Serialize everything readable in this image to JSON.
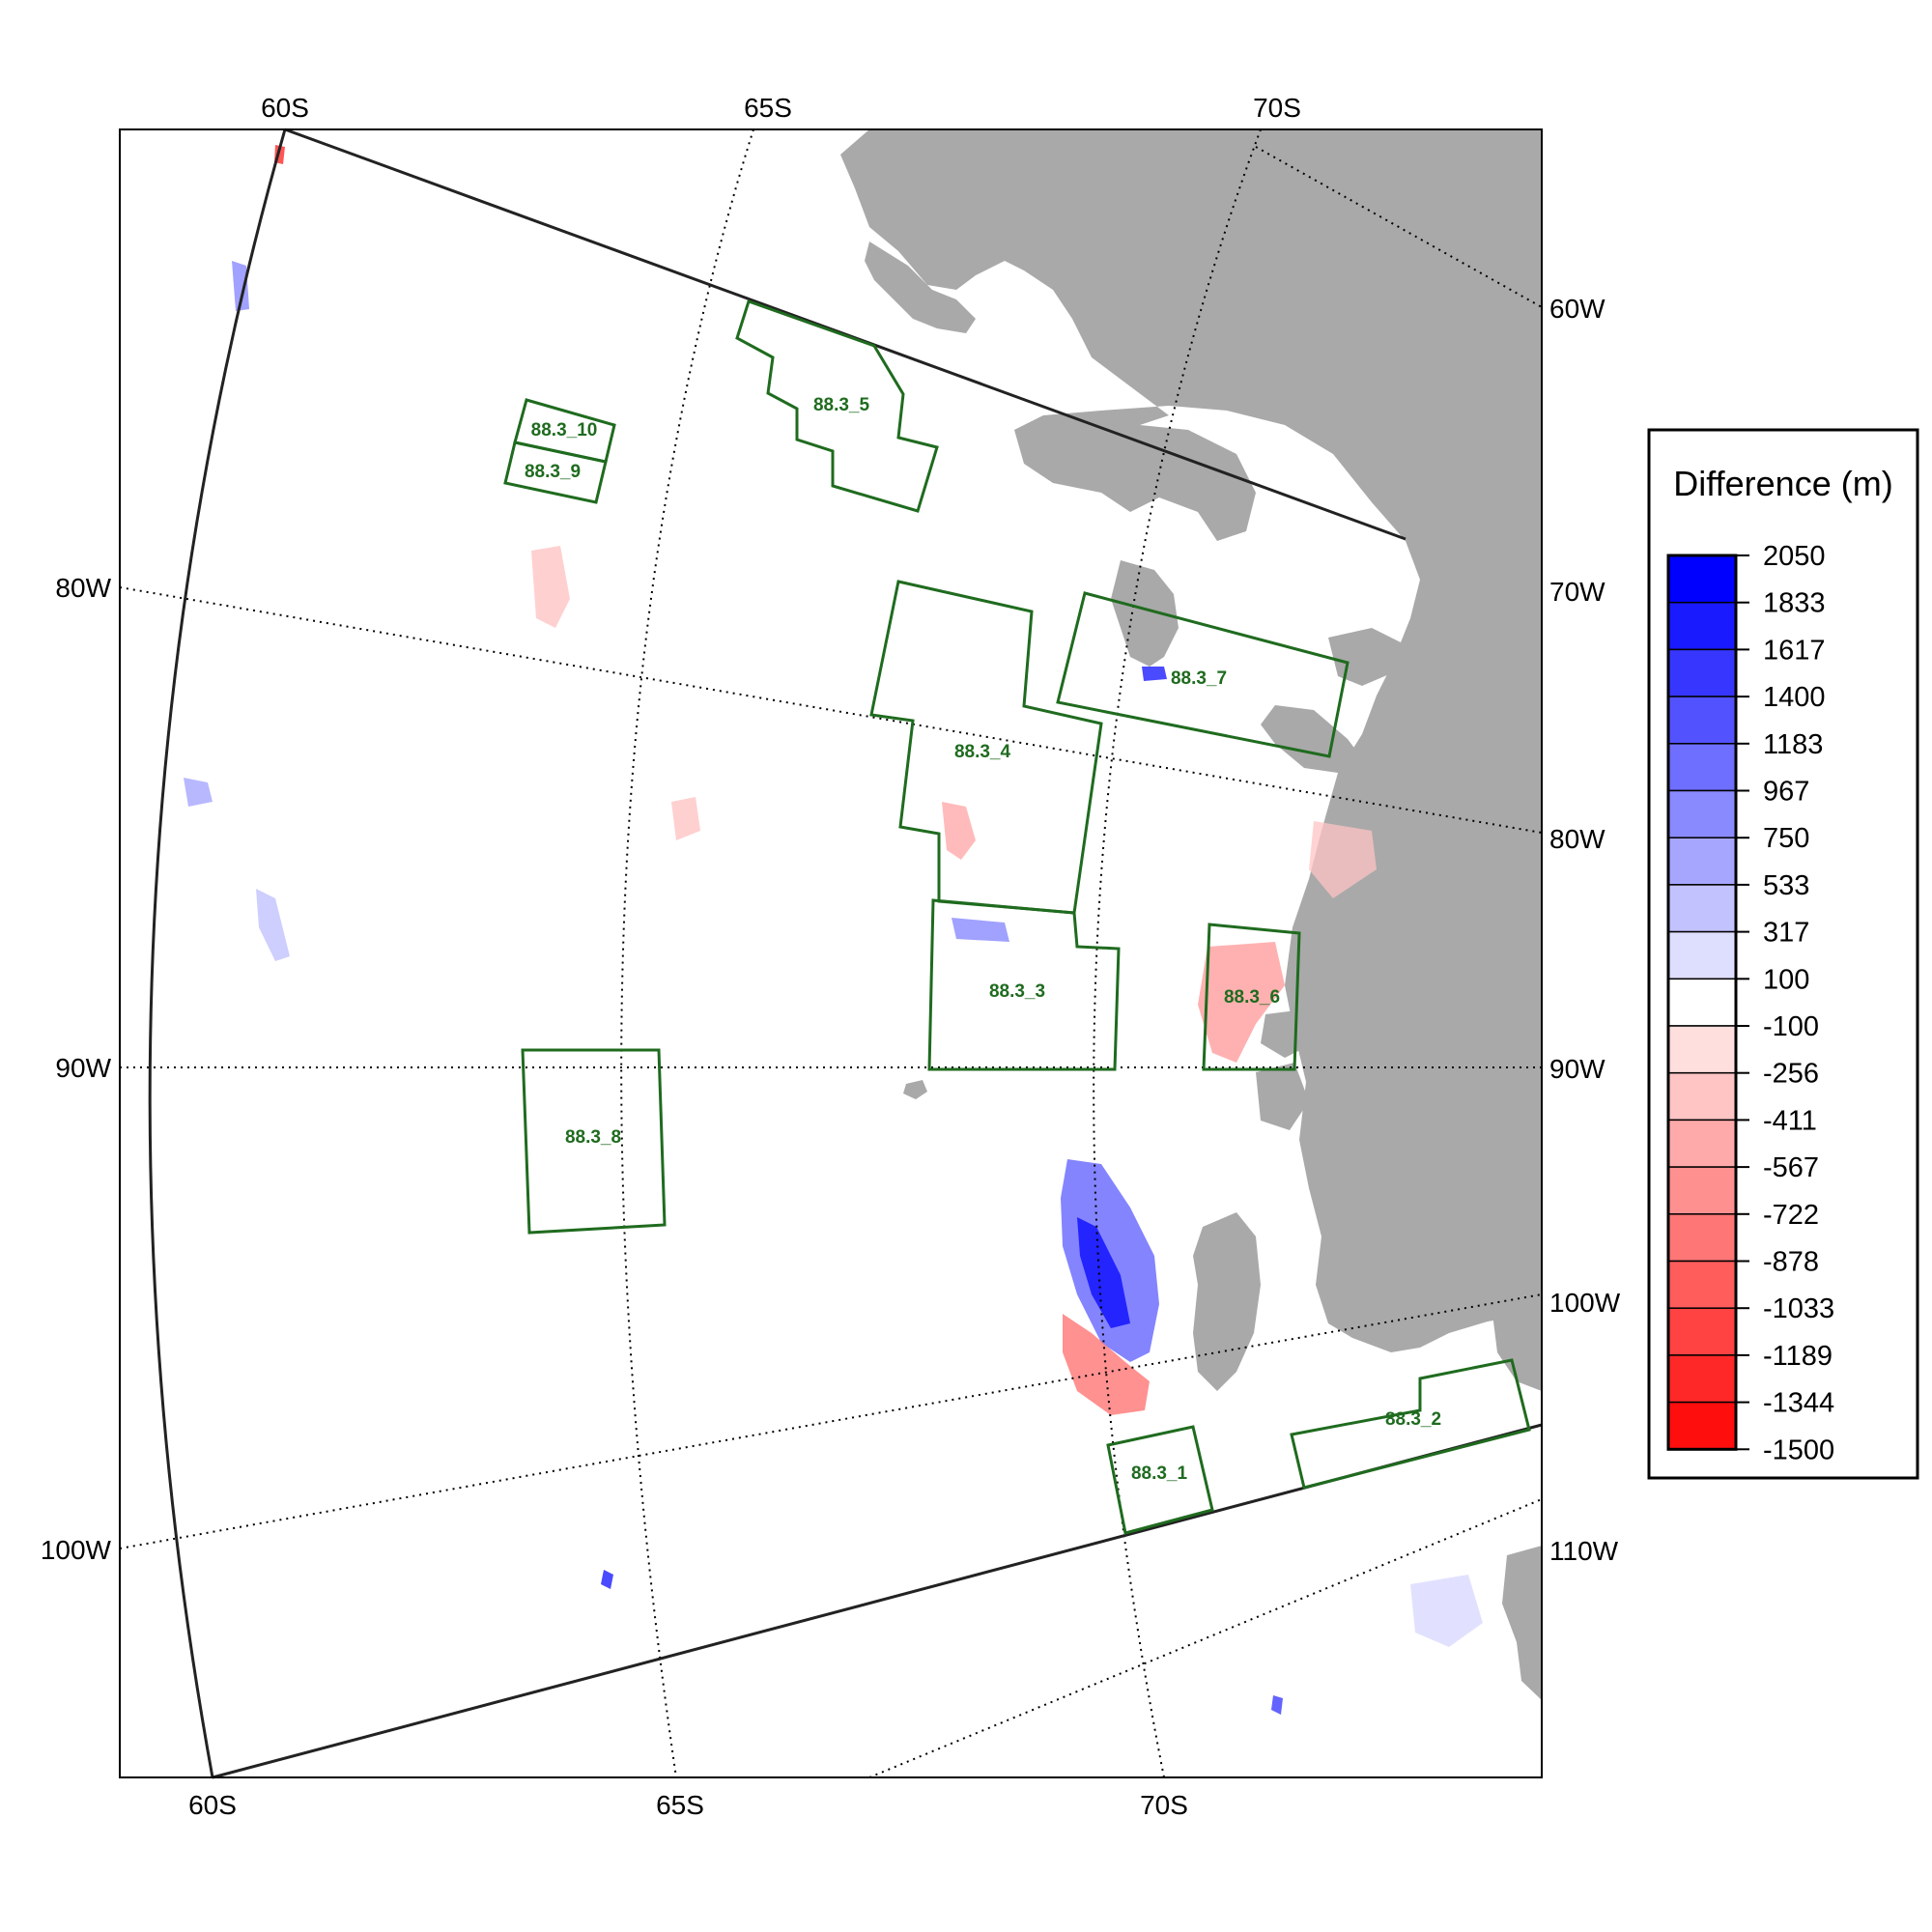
{
  "map": {
    "top_lat_labels": [
      "60S",
      "65S",
      "70S"
    ],
    "bottom_lat_labels": [
      "60S",
      "65S",
      "70S"
    ],
    "left_lon_labels": [
      "80W",
      "90W",
      "100W"
    ],
    "right_lon_labels": [
      "60W",
      "70W",
      "80W",
      "90W",
      "100W",
      "110W"
    ],
    "colors": {
      "land": "#a9a9a9",
      "boundary": "#222222",
      "ssmu_outline": "#1f6b1f",
      "graticule": "#000000"
    },
    "ssmu": [
      {
        "id": "88.3_1",
        "label": "88.3_1"
      },
      {
        "id": "88.3_2",
        "label": "88.3_2"
      },
      {
        "id": "88.3_3",
        "label": "88.3_3"
      },
      {
        "id": "88.3_4",
        "label": "88.3_4"
      },
      {
        "id": "88.3_5",
        "label": "88.3_5"
      },
      {
        "id": "88.3_6",
        "label": "88.3_6"
      },
      {
        "id": "88.3_7",
        "label": "88.3_7"
      },
      {
        "id": "88.3_8",
        "label": "88.3_8"
      },
      {
        "id": "88.3_9",
        "label": "88.3_9"
      },
      {
        "id": "88.3_10",
        "label": "88.3_10"
      }
    ]
  },
  "legend": {
    "title": "Difference (m)",
    "levels": [
      "2050",
      "1833",
      "1617",
      "1400",
      "1183",
      "967",
      "750",
      "533",
      "317",
      "100",
      "-100",
      "-256",
      "-411",
      "-567",
      "-722",
      "-878",
      "-1033",
      "-1189",
      "-1344",
      "-1500"
    ],
    "colors": [
      "#0000ff",
      "#1a1aff",
      "#3636ff",
      "#5252ff",
      "#6e6eff",
      "#8a8aff",
      "#a6a6ff",
      "#c2c2ff",
      "#dedeff",
      "#ffffff",
      "#ffdede",
      "#ffc4c4",
      "#ffaaaa",
      "#ff9090",
      "#ff7676",
      "#ff5c5c",
      "#ff4242",
      "#ff2828",
      "#ff0e0e"
    ]
  }
}
